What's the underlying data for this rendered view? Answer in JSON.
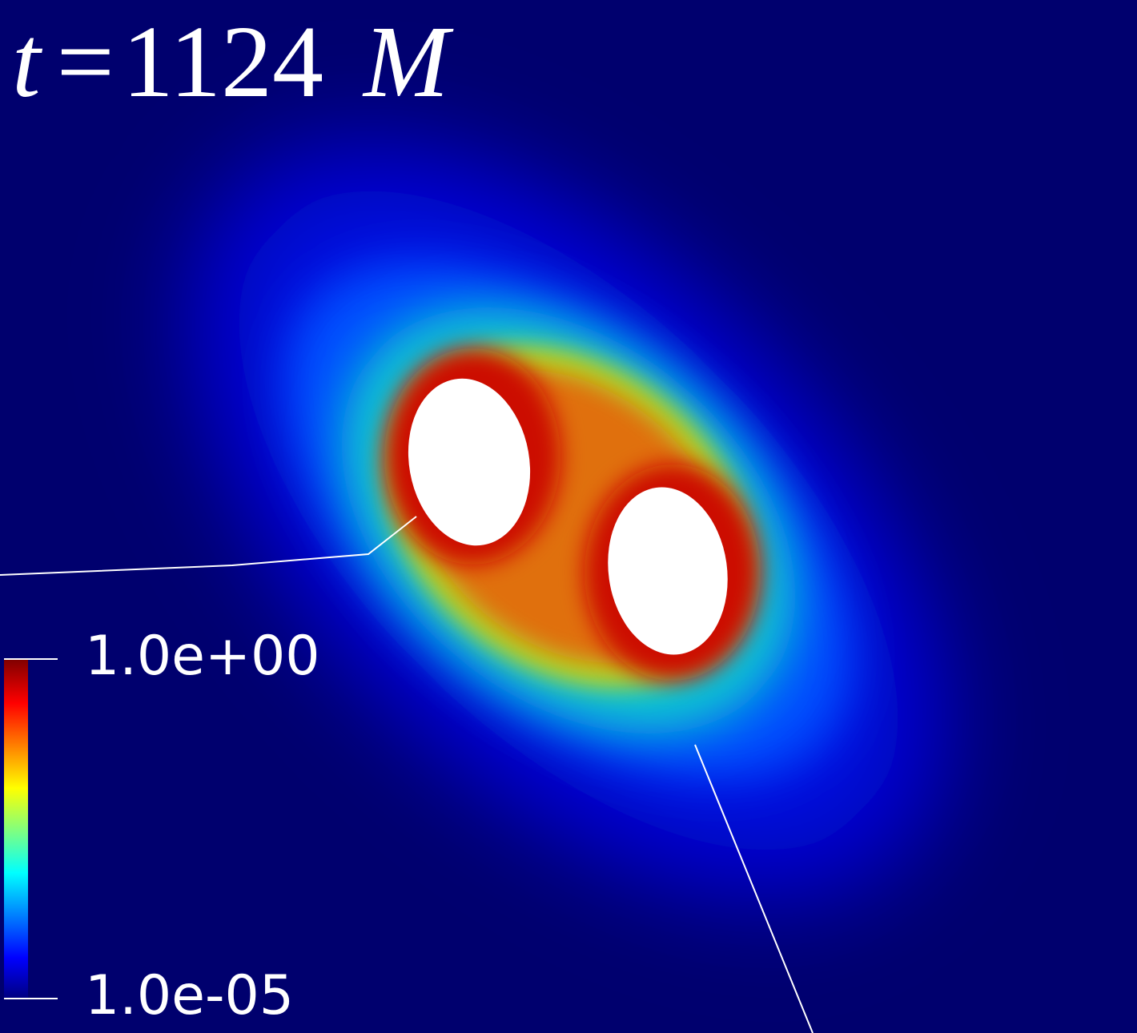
{
  "time_label": {
    "symbol": "t",
    "equals": "=",
    "value": "1124",
    "unit": "M"
  },
  "colorbar": {
    "max_label": "1.0e+00",
    "min_label": "1.0e-05"
  }
}
